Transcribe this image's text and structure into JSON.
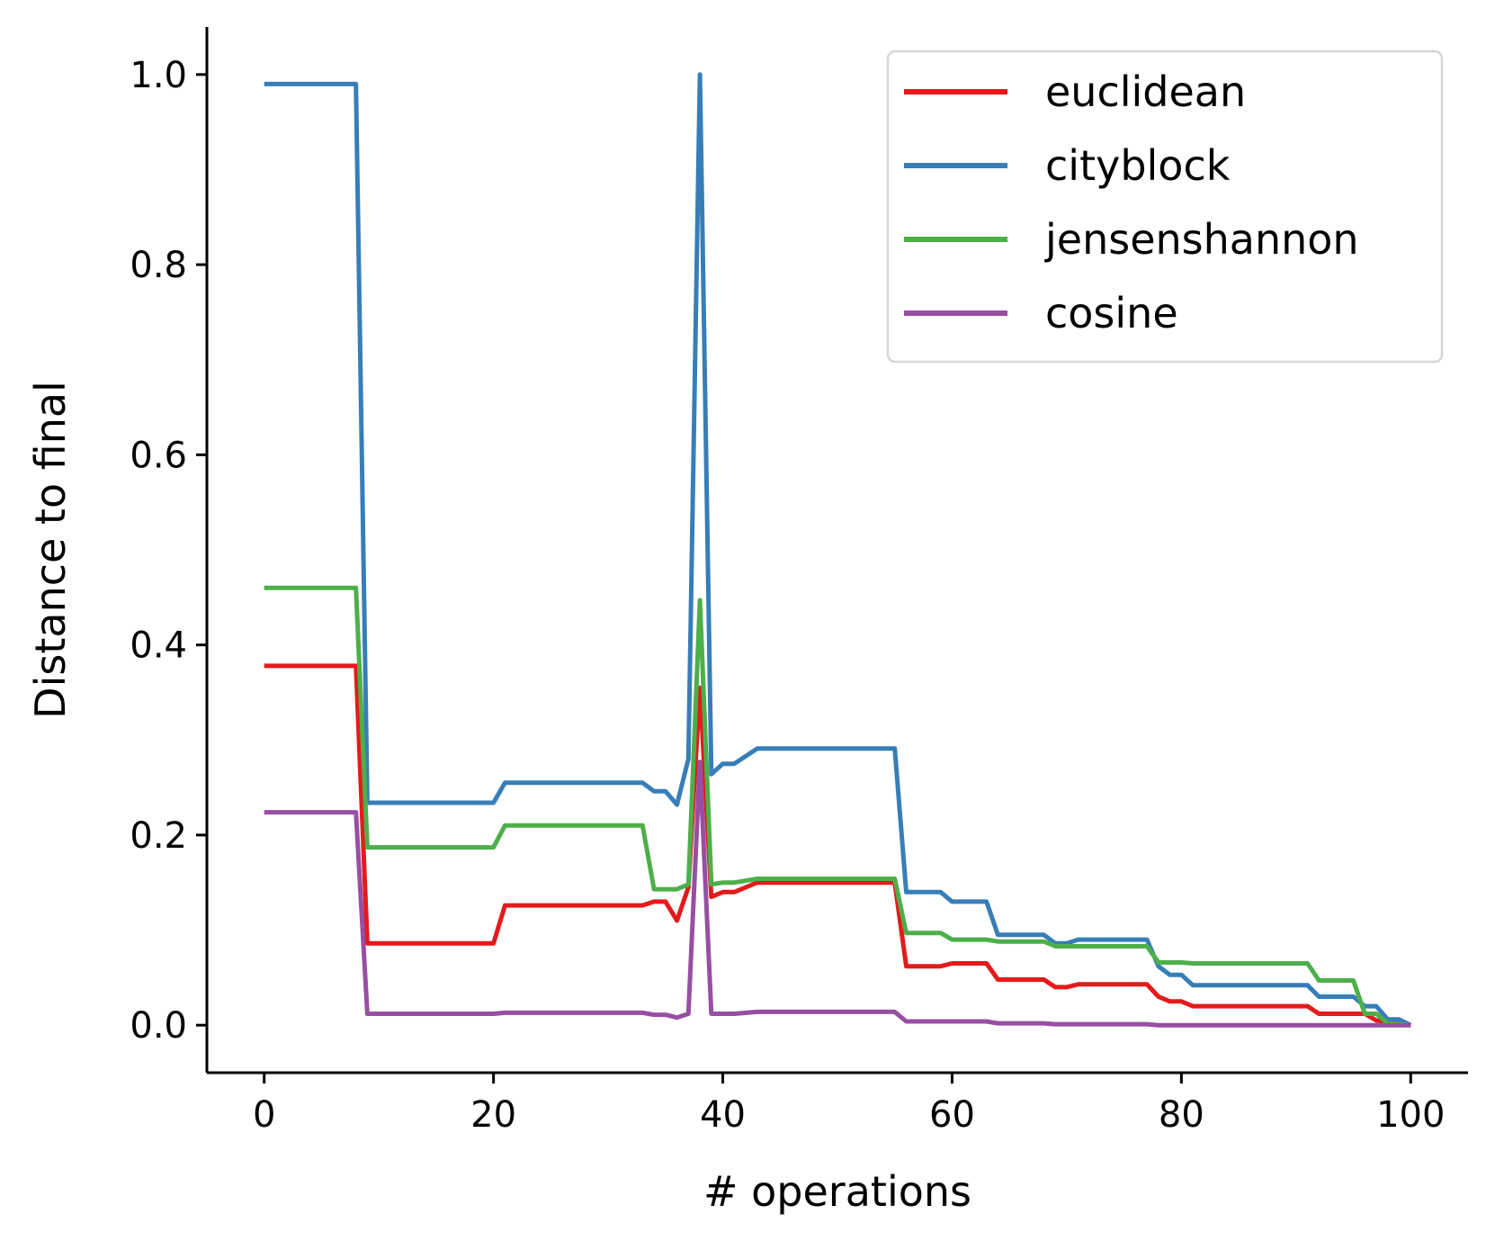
{
  "chart_data": {
    "type": "line",
    "title": "",
    "xlabel": "# operations",
    "ylabel": "Distance to final",
    "xlim": [
      -5,
      105
    ],
    "ylim": [
      -0.05,
      1.05
    ],
    "xticks": [
      0,
      20,
      40,
      60,
      80,
      100
    ],
    "xtick_labels": [
      "0",
      "20",
      "40",
      "60",
      "80",
      "100"
    ],
    "yticks": [
      0,
      0.2,
      0.4,
      0.6,
      0.8,
      1.0
    ],
    "ytick_labels": [
      "0.0",
      "0.2",
      "0.4",
      "0.6",
      "0.8",
      "1.0"
    ],
    "grid": false,
    "legend_position": "top-right",
    "series": [
      {
        "name": "euclidean",
        "color": "#e41a1c",
        "points": [
          [
            0,
            0.378
          ],
          [
            8,
            0.378
          ],
          [
            9,
            0.086
          ],
          [
            20,
            0.086
          ],
          [
            21,
            0.126
          ],
          [
            33,
            0.126
          ],
          [
            34,
            0.13
          ],
          [
            35,
            0.13
          ],
          [
            36,
            0.11
          ],
          [
            37,
            0.145
          ],
          [
            38,
            0.355
          ],
          [
            39,
            0.135
          ],
          [
            40,
            0.14
          ],
          [
            41,
            0.14
          ],
          [
            42,
            0.145
          ],
          [
            43,
            0.15
          ],
          [
            55,
            0.15
          ],
          [
            56,
            0.062
          ],
          [
            59,
            0.062
          ],
          [
            60,
            0.065
          ],
          [
            63,
            0.065
          ],
          [
            64,
            0.048
          ],
          [
            68,
            0.048
          ],
          [
            69,
            0.04
          ],
          [
            70,
            0.04
          ],
          [
            71,
            0.043
          ],
          [
            77,
            0.043
          ],
          [
            78,
            0.03
          ],
          [
            79,
            0.025
          ],
          [
            80,
            0.025
          ],
          [
            81,
            0.02
          ],
          [
            91,
            0.02
          ],
          [
            92,
            0.012
          ],
          [
            96,
            0.012
          ],
          [
            97,
            0.005
          ],
          [
            100,
            0
          ]
        ]
      },
      {
        "name": "cityblock",
        "color": "#377eb8",
        "points": [
          [
            0,
            0.99
          ],
          [
            8,
            0.99
          ],
          [
            9,
            0.234
          ],
          [
            20,
            0.234
          ],
          [
            21,
            0.255
          ],
          [
            33,
            0.255
          ],
          [
            34,
            0.246
          ],
          [
            35,
            0.246
          ],
          [
            36,
            0.232
          ],
          [
            37,
            0.28
          ],
          [
            38,
            1.0
          ],
          [
            39,
            0.264
          ],
          [
            40,
            0.275
          ],
          [
            41,
            0.275
          ],
          [
            43,
            0.291
          ],
          [
            55,
            0.291
          ],
          [
            56,
            0.14
          ],
          [
            59,
            0.14
          ],
          [
            60,
            0.13
          ],
          [
            63,
            0.13
          ],
          [
            64,
            0.095
          ],
          [
            68,
            0.095
          ],
          [
            69,
            0.086
          ],
          [
            70,
            0.086
          ],
          [
            71,
            0.09
          ],
          [
            77,
            0.09
          ],
          [
            78,
            0.062
          ],
          [
            79,
            0.053
          ],
          [
            80,
            0.053
          ],
          [
            81,
            0.042
          ],
          [
            91,
            0.042
          ],
          [
            92,
            0.03
          ],
          [
            95,
            0.03
          ],
          [
            96,
            0.02
          ],
          [
            97,
            0.02
          ],
          [
            98,
            0.006
          ],
          [
            99,
            0.006
          ],
          [
            100,
            0
          ]
        ]
      },
      {
        "name": "jensenshannon",
        "color": "#4daf4a",
        "points": [
          [
            0,
            0.46
          ],
          [
            8,
            0.46
          ],
          [
            9,
            0.187
          ],
          [
            20,
            0.187
          ],
          [
            21,
            0.21
          ],
          [
            33,
            0.21
          ],
          [
            34,
            0.143
          ],
          [
            36,
            0.143
          ],
          [
            37,
            0.148
          ],
          [
            38,
            0.447
          ],
          [
            39,
            0.148
          ],
          [
            40,
            0.15
          ],
          [
            41,
            0.15
          ],
          [
            43,
            0.154
          ],
          [
            55,
            0.154
          ],
          [
            56,
            0.097
          ],
          [
            59,
            0.097
          ],
          [
            60,
            0.09
          ],
          [
            63,
            0.09
          ],
          [
            64,
            0.088
          ],
          [
            68,
            0.088
          ],
          [
            69,
            0.083
          ],
          [
            77,
            0.083
          ],
          [
            78,
            0.066
          ],
          [
            80,
            0.066
          ],
          [
            81,
            0.065
          ],
          [
            91,
            0.065
          ],
          [
            92,
            0.047
          ],
          [
            95,
            0.047
          ],
          [
            96,
            0.012
          ],
          [
            97,
            0.012
          ],
          [
            98,
            0.002
          ],
          [
            100,
            0
          ]
        ]
      },
      {
        "name": "cosine",
        "color": "#984ea3",
        "points": [
          [
            0,
            0.224
          ],
          [
            8,
            0.224
          ],
          [
            9,
            0.012
          ],
          [
            20,
            0.012
          ],
          [
            21,
            0.013
          ],
          [
            33,
            0.013
          ],
          [
            34,
            0.011
          ],
          [
            35,
            0.011
          ],
          [
            36,
            0.008
          ],
          [
            37,
            0.012
          ],
          [
            38,
            0.277
          ],
          [
            39,
            0.012
          ],
          [
            41,
            0.012
          ],
          [
            43,
            0.014
          ],
          [
            55,
            0.014
          ],
          [
            56,
            0.004
          ],
          [
            63,
            0.004
          ],
          [
            64,
            0.002
          ],
          [
            68,
            0.002
          ],
          [
            69,
            0.001
          ],
          [
            77,
            0.001
          ],
          [
            78,
            0.0
          ],
          [
            100,
            0
          ]
        ]
      }
    ]
  }
}
